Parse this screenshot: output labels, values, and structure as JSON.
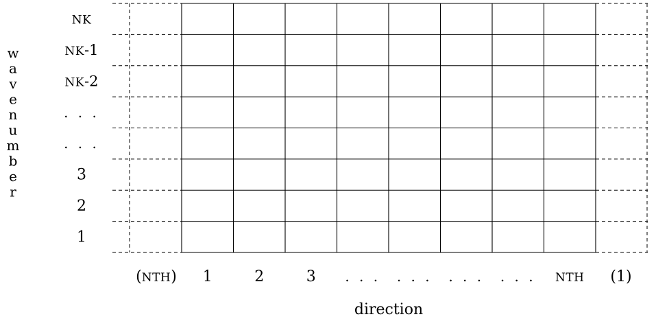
{
  "diagram": {
    "y_axis_label": "wavenumber",
    "x_axis_label": "direction",
    "row_labels": [
      "NK",
      "NK-1",
      "NK-2",
      "...",
      "...",
      "3",
      "2",
      "1"
    ],
    "column_labels": [
      "1",
      "2",
      "3",
      "...",
      "...",
      "...",
      "...",
      "NTH"
    ],
    "left_ghost_label": "(NTH)",
    "right_ghost_label": "(1)",
    "grid_rows": 8,
    "grid_columns": 8,
    "line_color": "#000000"
  }
}
